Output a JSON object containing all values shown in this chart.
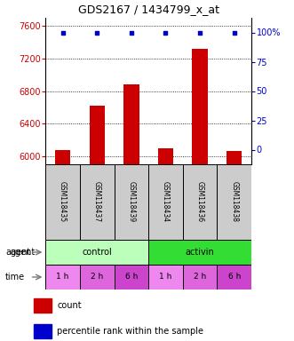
{
  "title": "GDS2167 / 1434799_x_at",
  "samples": [
    "GSM118435",
    "GSM118437",
    "GSM118439",
    "GSM118434",
    "GSM118436",
    "GSM118438"
  ],
  "count_values": [
    6080,
    6620,
    6880,
    6100,
    7320,
    6060
  ],
  "percentile_values": [
    100,
    100,
    100,
    100,
    100,
    100
  ],
  "ylim_left": [
    5900,
    7700
  ],
  "ylim_right": [
    -12.5,
    112.5
  ],
  "yticks_left": [
    6000,
    6400,
    6800,
    7200,
    7600
  ],
  "yticks_right": [
    0,
    25,
    50,
    75,
    100
  ],
  "bar_color": "#cc0000",
  "dot_color": "#0000cc",
  "agent_colors": [
    "#bbffbb",
    "#33dd33"
  ],
  "time_colors_all": [
    "#ee88ee",
    "#dd66dd",
    "#cc44cc",
    "#ee88ee",
    "#dd66dd",
    "#cc44cc"
  ],
  "time_labels": [
    "1 h",
    "2 h",
    "6 h",
    "1 h",
    "2 h",
    "6 h"
  ],
  "sample_box_color": "#cccccc",
  "legend_count_color": "#cc0000",
  "legend_pct_color": "#0000cc",
  "left_tick_color": "#cc0000",
  "right_tick_color": "#0000cc",
  "grid_color": "#000000",
  "right_axis_label": "100%"
}
